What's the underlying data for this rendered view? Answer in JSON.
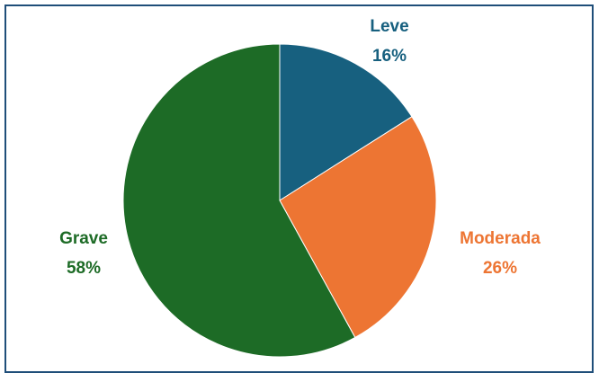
{
  "chart_data": {
    "type": "pie",
    "title": "",
    "slices": [
      {
        "label": "Leve",
        "value": 16,
        "display": "16%",
        "color": "#17607f"
      },
      {
        "label": "Moderada",
        "value": 26,
        "display": "26%",
        "color": "#ed7533"
      },
      {
        "label": "Grave",
        "value": 58,
        "display": "58%",
        "color": "#1d6b26"
      }
    ],
    "start_angle_deg": 0,
    "direction": "clockwise",
    "border_color": "#1f4e79",
    "slice_stroke_color": "#ffffff"
  }
}
